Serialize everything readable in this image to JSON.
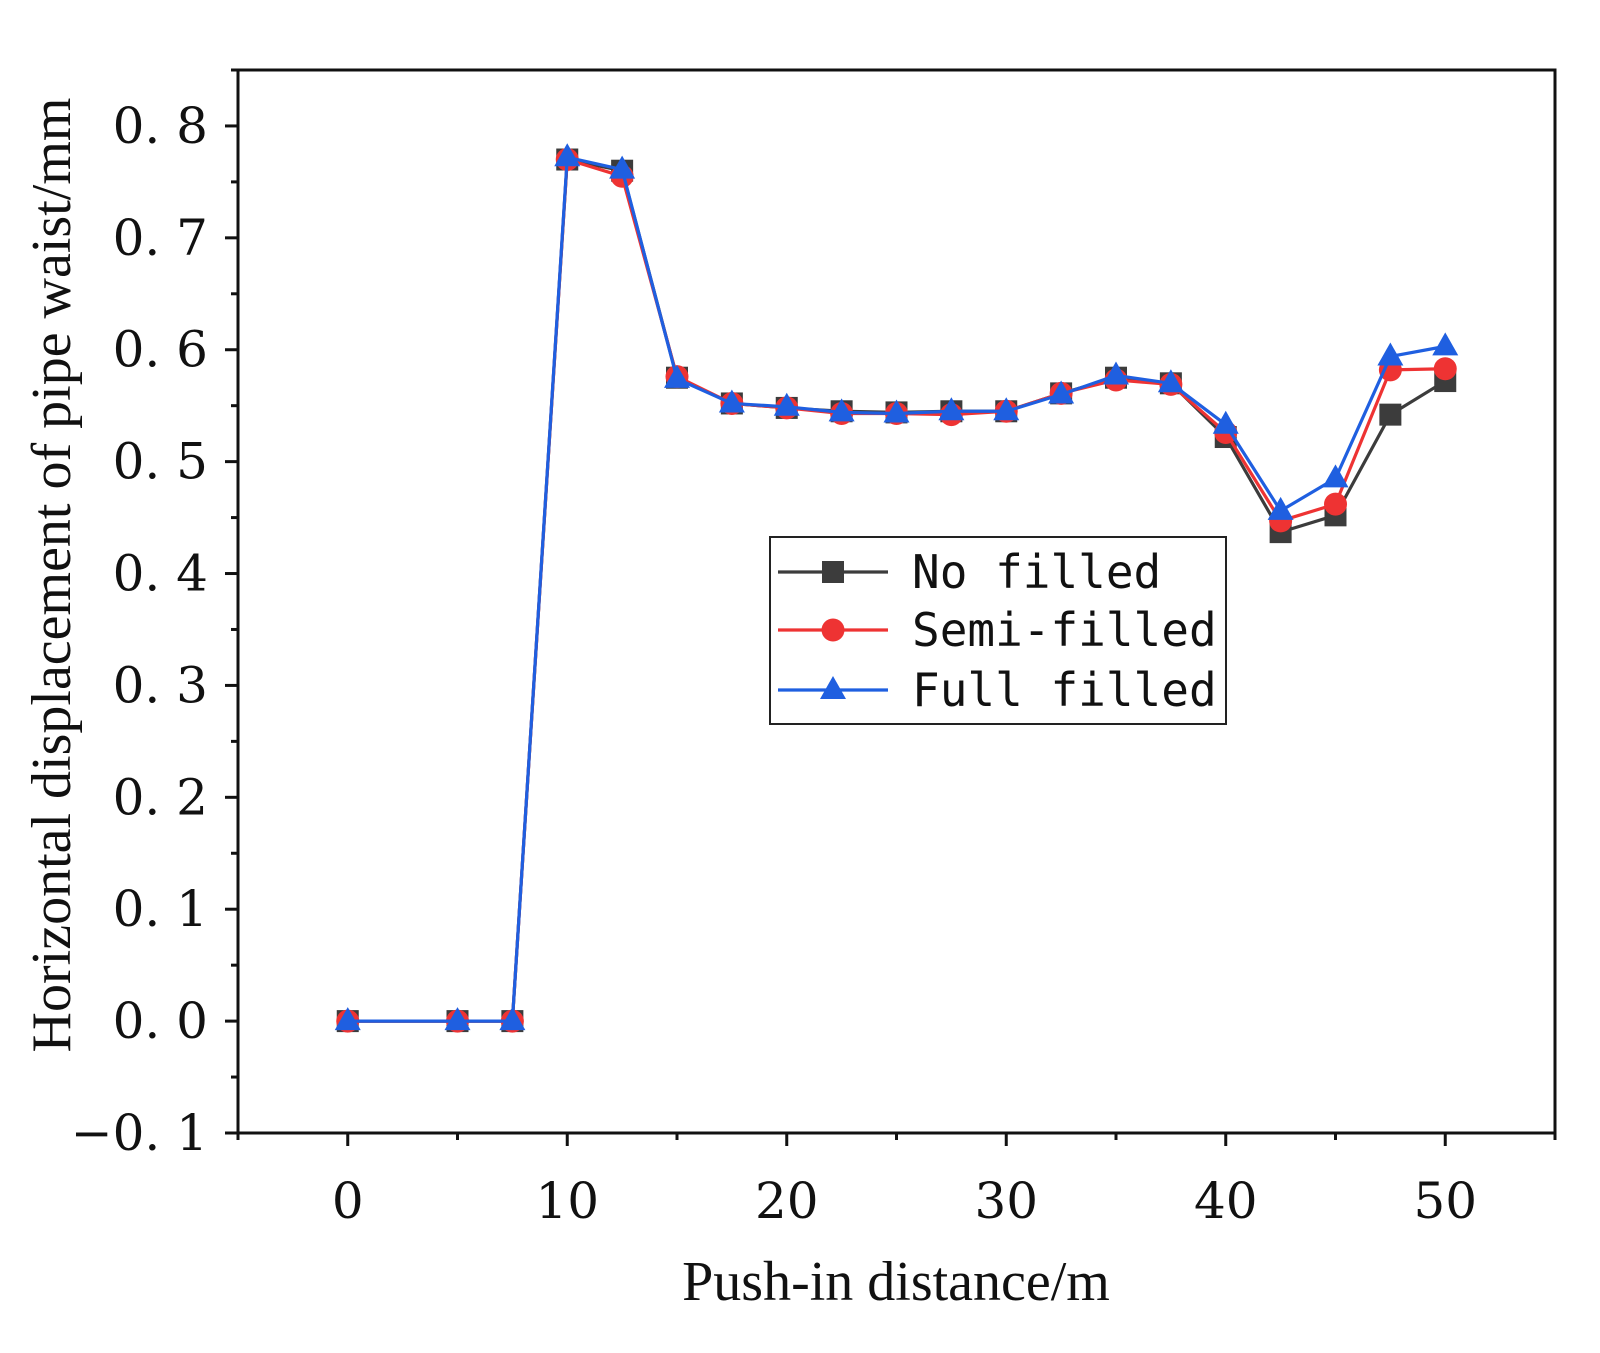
{
  "chart_data": {
    "type": "line",
    "title": "",
    "xlabel": "Push-in distance/m",
    "ylabel": "Horizontal displacement of pipe waist/mm",
    "xlim": [
      -5,
      55
    ],
    "ylim": [
      -0.1,
      0.85
    ],
    "xticks": [
      0,
      10,
      20,
      30,
      40,
      50
    ],
    "xtick_labels": [
      "0",
      "10",
      "20",
      "30",
      "40",
      "50"
    ],
    "yticks": [
      -0.1,
      0,
      0.1,
      0.2,
      0.3,
      0.4,
      0.5,
      0.6,
      0.7,
      0.8
    ],
    "ytick_labels": [
      "−0. 1",
      "0. 0",
      "0. 1",
      "0. 2",
      "0. 3",
      "0. 4",
      "0. 5",
      "0. 6",
      "0. 7",
      "0. 8"
    ],
    "grid": false,
    "legend_position": "center-right",
    "x": [
      0,
      5,
      7.5,
      10,
      12.5,
      15,
      17.5,
      20,
      22.5,
      25,
      27.5,
      30,
      32.5,
      35,
      37.5,
      40,
      42.5,
      45,
      47.5,
      50
    ],
    "series": [
      {
        "name": "No filled",
        "color": "#3c3c3c",
        "marker": "square",
        "values": [
          0,
          0,
          0,
          0.77,
          0.76,
          0.575,
          0.552,
          0.548,
          0.545,
          0.544,
          0.545,
          0.545,
          0.561,
          0.575,
          0.57,
          0.522,
          0.437,
          0.452,
          0.542,
          0.572
        ]
      },
      {
        "name": "Semi-filled",
        "color": "#ee3333",
        "marker": "circle",
        "values": [
          0,
          0,
          0,
          0.77,
          0.755,
          0.576,
          0.552,
          0.548,
          0.543,
          0.543,
          0.542,
          0.545,
          0.561,
          0.573,
          0.569,
          0.526,
          0.447,
          0.462,
          0.582,
          0.583
        ]
      },
      {
        "name": "Full filled",
        "color": "#1f5fe0",
        "marker": "triangle",
        "values": [
          0,
          0,
          0,
          0.772,
          0.761,
          0.574,
          0.552,
          0.549,
          0.544,
          0.543,
          0.545,
          0.545,
          0.56,
          0.577,
          0.57,
          0.533,
          0.456,
          0.485,
          0.594,
          0.603
        ]
      }
    ]
  }
}
